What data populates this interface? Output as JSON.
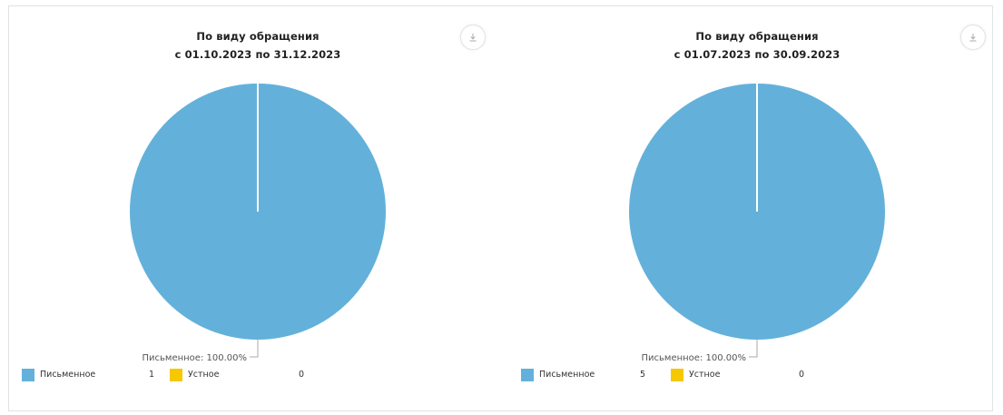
{
  "chart_data": [
    {
      "type": "pie",
      "title": "По виду обращения",
      "subtitle": "с 01.10.2023 по 31.12.2023",
      "slices": [
        {
          "label": "Письменное",
          "value": 1,
          "color": "#63b1da"
        },
        {
          "label": "Устное",
          "value": 0,
          "color": "#f5c800"
        }
      ],
      "slice_label": "Письменное: 100.00%",
      "legend": [
        {
          "label": "Письменное",
          "value": "1",
          "color": "#63b1da"
        },
        {
          "label": "Устное",
          "value": "0",
          "color": "#f5c800"
        }
      ],
      "legend_position": "bottom-left",
      "download_icon": "download-icon"
    },
    {
      "type": "pie",
      "title": "По виду обращения",
      "subtitle": "с 01.07.2023 по 30.09.2023",
      "slices": [
        {
          "label": "Письменное",
          "value": 5,
          "color": "#63b1da"
        },
        {
          "label": "Устное",
          "value": 0,
          "color": "#f5c800"
        }
      ],
      "slice_label": "Письменное: 100.00%",
      "legend": [
        {
          "label": "Письменное",
          "value": "5",
          "color": "#63b1da"
        },
        {
          "label": "Устное",
          "value": "0",
          "color": "#f5c800"
        }
      ],
      "legend_position": "bottom-left",
      "download_icon": "download-icon"
    }
  ]
}
